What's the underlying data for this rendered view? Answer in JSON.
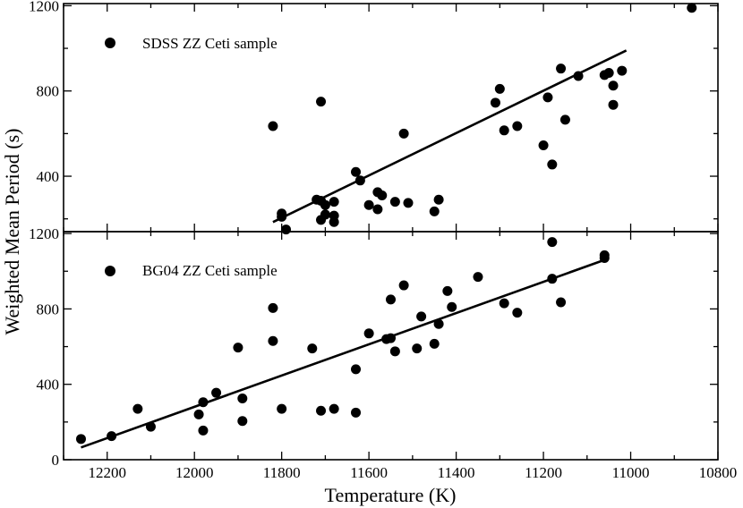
{
  "chart_data": {
    "type": "scatter",
    "xlabel": "Temperature (K)",
    "ylabel": "Weighted Mean Period (s)",
    "xlim": [
      12300,
      10800
    ],
    "x_ticks": [
      "12200",
      "12000",
      "11800",
      "11600",
      "11400",
      "11200",
      "11000",
      "10800"
    ],
    "panels": [
      {
        "name": "top",
        "legend": "SDSS ZZ Ceti sample",
        "legend_position": "top-left",
        "ylim": [
          140,
          1210
        ],
        "y_ticks": [
          "400",
          "800",
          "1200"
        ],
        "fit_line": {
          "x": [
            11820,
            11010
          ],
          "y": [
            185,
            990
          ]
        },
        "points": [
          [
            11820,
            635
          ],
          [
            11800,
            225
          ],
          [
            11800,
            210
          ],
          [
            11790,
            150
          ],
          [
            11720,
            290
          ],
          [
            11710,
            750
          ],
          [
            11710,
            285
          ],
          [
            11710,
            195
          ],
          [
            11700,
            220
          ],
          [
            11700,
            265
          ],
          [
            11680,
            280
          ],
          [
            11680,
            215
          ],
          [
            11680,
            185
          ],
          [
            11630,
            420
          ],
          [
            11620,
            380
          ],
          [
            11600,
            265
          ],
          [
            11580,
            325
          ],
          [
            11570,
            310
          ],
          [
            11580,
            245
          ],
          [
            11540,
            280
          ],
          [
            11520,
            600
          ],
          [
            11510,
            275
          ],
          [
            11450,
            235
          ],
          [
            11440,
            290
          ],
          [
            11310,
            745
          ],
          [
            11300,
            810
          ],
          [
            11290,
            615
          ],
          [
            11260,
            635
          ],
          [
            11200,
            545
          ],
          [
            11190,
            770
          ],
          [
            11180,
            455
          ],
          [
            11160,
            905
          ],
          [
            11150,
            665
          ],
          [
            11120,
            870
          ],
          [
            11060,
            875
          ],
          [
            11050,
            885
          ],
          [
            11040,
            825
          ],
          [
            11040,
            735
          ],
          [
            11020,
            895
          ],
          [
            10860,
            1190
          ]
        ]
      },
      {
        "name": "bottom",
        "legend": "BG04 ZZ Ceti sample",
        "legend_position": "top-left",
        "ylim": [
          0,
          1210
        ],
        "y_ticks": [
          "0",
          "400",
          "800",
          "1200"
        ],
        "fit_line": {
          "x": [
            12260,
            11060
          ],
          "y": [
            65,
            1060
          ]
        },
        "points": [
          [
            12260,
            110
          ],
          [
            12190,
            125
          ],
          [
            12130,
            270
          ],
          [
            12100,
            175
          ],
          [
            11990,
            240
          ],
          [
            11980,
            305
          ],
          [
            11980,
            155
          ],
          [
            11950,
            355
          ],
          [
            11900,
            595
          ],
          [
            11890,
            325
          ],
          [
            11890,
            205
          ],
          [
            11820,
            805
          ],
          [
            11820,
            630
          ],
          [
            11800,
            270
          ],
          [
            11730,
            590
          ],
          [
            11710,
            260
          ],
          [
            11680,
            270
          ],
          [
            11630,
            480
          ],
          [
            11630,
            250
          ],
          [
            11600,
            670
          ],
          [
            11560,
            640
          ],
          [
            11550,
            645
          ],
          [
            11550,
            850
          ],
          [
            11540,
            575
          ],
          [
            11520,
            925
          ],
          [
            11490,
            590
          ],
          [
            11480,
            760
          ],
          [
            11450,
            615
          ],
          [
            11440,
            720
          ],
          [
            11420,
            895
          ],
          [
            11410,
            810
          ],
          [
            11350,
            970
          ],
          [
            11290,
            830
          ],
          [
            11260,
            780
          ],
          [
            11180,
            1155
          ],
          [
            11180,
            960
          ],
          [
            11160,
            835
          ],
          [
            11060,
            1085
          ],
          [
            11060,
            1070
          ]
        ]
      }
    ]
  }
}
